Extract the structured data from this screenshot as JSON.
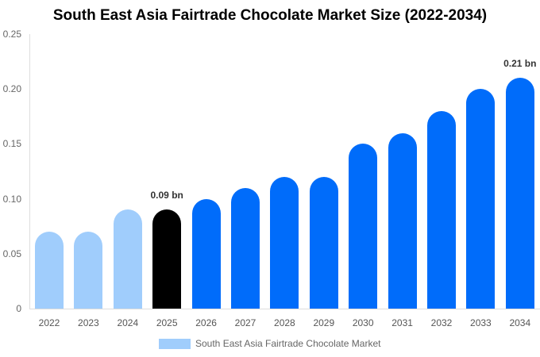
{
  "chart_data": {
    "type": "bar",
    "title": "South East Asia Fairtrade Chocolate Market Size (2022-2034)",
    "xlabel": "",
    "ylabel": "",
    "ylim": [
      0,
      0.25
    ],
    "yticks": [
      "0",
      "0.05",
      "0.10",
      "0.15",
      "0.20",
      "0.25"
    ],
    "grid": false,
    "legend_position": "bottom",
    "categories": [
      "2022",
      "2023",
      "2024",
      "2025",
      "2026",
      "2027",
      "2028",
      "2029",
      "2030",
      "2031",
      "2032",
      "2033",
      "2034"
    ],
    "series": [
      {
        "name": "South East Asia Fairtrade Chocolate Market",
        "values": [
          0.07,
          0.07,
          0.09,
          0.09,
          0.1,
          0.11,
          0.12,
          0.12,
          0.15,
          0.16,
          0.18,
          0.2,
          0.21
        ],
        "colors": [
          "#a0cdfc",
          "#a0cdfc",
          "#a0cdfc",
          "#000000",
          "#006cfa",
          "#006cfa",
          "#006cfa",
          "#006cfa",
          "#006cfa",
          "#006cfa",
          "#006cfa",
          "#006cfa",
          "#006cfa"
        ]
      }
    ],
    "annotations": [
      {
        "category": "2025",
        "text": "0.09 bn"
      },
      {
        "category": "2034",
        "text": "0.21 bn"
      }
    ]
  },
  "legend": {
    "label": "South East Asia Fairtrade Chocolate Market",
    "color": "#a0cdfc"
  }
}
